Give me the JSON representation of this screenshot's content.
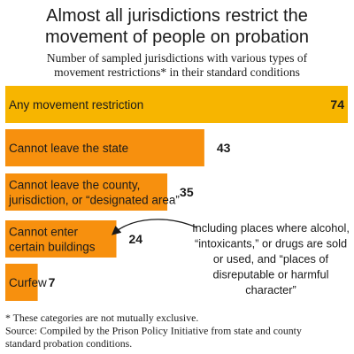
{
  "chart_data": {
    "type": "bar",
    "orientation": "horizontal",
    "title": [
      "Almost all jurisdictions restrict the",
      "movement of people on probation"
    ],
    "subtitle": [
      "Number of sampled jurisdictions with various types of",
      "movement restrictions* in their standard conditions"
    ],
    "categories": [
      [
        "Any movement restriction"
      ],
      [
        "Cannot leave the state"
      ],
      [
        "Cannot leave the county,",
        "jurisdiction, or “designated area”"
      ],
      [
        "Cannot enter",
        "certain buildings"
      ],
      [
        "Curfew"
      ]
    ],
    "values": [
      74,
      43,
      35,
      24,
      7
    ],
    "colors": [
      "#f7b500",
      "#f7900e",
      "#f7900e",
      "#f7900e",
      "#f7900e"
    ],
    "annotation": {
      "lines": [
        "Including places where alcohol,",
        "“intoxicants,” or drugs are sold",
        "or used, and “places of",
        "disreputable or harmful",
        "character”"
      ],
      "target_category_index": 3
    },
    "footnotes": [
      "* These categories are not mutually exclusive.",
      "Source: Compiled by the Prison Policy Initiative from state and county",
      "standard probation conditions."
    ]
  }
}
